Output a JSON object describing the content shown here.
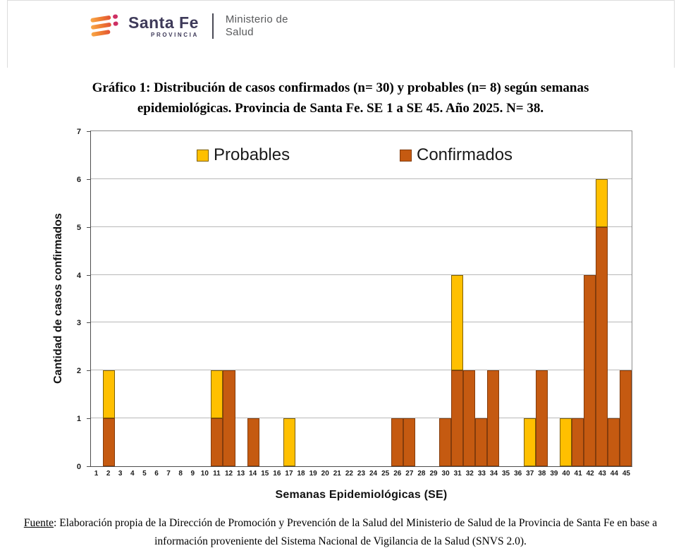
{
  "header": {
    "brand_name": "Santa Fe",
    "brand_subtitle": "PROVINCIA",
    "ministry_line1": "Ministerio de",
    "ministry_line2": "Salud",
    "brand_color": "#3e3a59",
    "ministry_color": "#58595b"
  },
  "title": {
    "line1": "Gráfico 1: Distribución de casos confirmados (n= 30) y probables (n= 8) según semanas",
    "line2": "epidemiológicas. Provincia de Santa Fe. SE 1 a SE 45. Año 2025. N= 38."
  },
  "chart_data": {
    "type": "bar",
    "stacked": true,
    "title": "",
    "xlabel": "Semanas Epidemiológicas (SE)",
    "ylabel": "Cantidad de casos confirmados",
    "ylim": [
      0,
      7
    ],
    "yticks": [
      0,
      1,
      2,
      3,
      4,
      5,
      6,
      7
    ],
    "grid": true,
    "legend_position": "top-inside",
    "categories": [
      1,
      2,
      3,
      4,
      5,
      6,
      7,
      8,
      9,
      10,
      11,
      12,
      13,
      14,
      15,
      16,
      17,
      18,
      19,
      20,
      21,
      22,
      23,
      24,
      25,
      26,
      27,
      28,
      29,
      30,
      31,
      32,
      33,
      34,
      35,
      36,
      37,
      38,
      39,
      40,
      41,
      42,
      43,
      44,
      45
    ],
    "series": [
      {
        "name": "Confirmados",
        "color": "#C55A11",
        "border_color": "#843C0C",
        "values": [
          0,
          1,
          0,
          0,
          0,
          0,
          0,
          0,
          0,
          0,
          1,
          2,
          0,
          1,
          0,
          0,
          0,
          0,
          0,
          0,
          0,
          0,
          0,
          0,
          0,
          1,
          1,
          0,
          0,
          1,
          2,
          2,
          1,
          2,
          0,
          0,
          0,
          2,
          0,
          0,
          1,
          4,
          5,
          1,
          2
        ]
      },
      {
        "name": "Probables",
        "color": "#FFC000",
        "border_color": "#806000",
        "values": [
          0,
          1,
          0,
          0,
          0,
          0,
          0,
          0,
          0,
          0,
          1,
          0,
          0,
          0,
          0,
          0,
          1,
          0,
          0,
          0,
          0,
          0,
          0,
          0,
          0,
          0,
          0,
          0,
          0,
          0,
          2,
          0,
          0,
          0,
          0,
          0,
          1,
          0,
          0,
          1,
          0,
          0,
          1,
          0,
          0
        ]
      }
    ],
    "totals": {
      "confirmados": 30,
      "probables": 8,
      "total": 38
    }
  },
  "footer": {
    "source_label": "Fuente",
    "source_text": ": Elaboración propia de la Dirección de Promoción y Prevención de la Salud del Ministerio de Salud de la Provincia de Santa Fe en base a información proveniente del Sistema Nacional de Vigilancia de la Salud (SNVS 2.0)."
  }
}
